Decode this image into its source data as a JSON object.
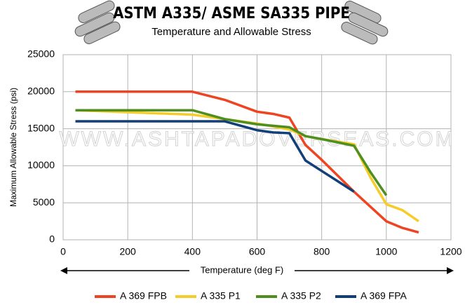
{
  "chart_data": {
    "type": "line",
    "title": "ASTM A335/ ASME SA335 PIPE",
    "subtitle": "Temperature and Allowable Stress",
    "watermark": "WWW.ASHTAPADOVERSEAS.COM",
    "x_label": "Temperature (deg F)",
    "y_label": "Maximum Allowable Stress (psi)",
    "xlim": [
      0,
      1200
    ],
    "xticks": [
      0,
      200,
      400,
      600,
      800,
      1000,
      1200
    ],
    "ylim": [
      0,
      25000
    ],
    "yticks": [
      0,
      5000,
      10000,
      15000,
      20000,
      25000
    ],
    "grid": true,
    "legend": "bottom",
    "series": [
      {
        "name": "A 369 FPB",
        "color": "#ee4422",
        "x": [
          38,
          400,
          500,
          600,
          650,
          700,
          750,
          800,
          900,
          1000,
          1050,
          1100
        ],
        "values": [
          20000,
          20000,
          18900,
          17300,
          17000,
          16500,
          12800,
          10800,
          6500,
          2500,
          1600,
          1000
        ]
      },
      {
        "name": "A 335 P1",
        "color": "#f5cc2a",
        "x": [
          38,
          400,
          500,
          600,
          650,
          700,
          750,
          800,
          900,
          950,
          1000,
          1050,
          1100
        ],
        "values": [
          17500,
          16900,
          16300,
          15700,
          15300,
          14900,
          14000,
          13600,
          12900,
          8500,
          4800,
          4000,
          2500
        ]
      },
      {
        "name": "A 335 P2",
        "color": "#4e8f1f",
        "x": [
          38,
          400,
          500,
          600,
          650,
          700,
          750,
          800,
          900,
          950,
          1000
        ],
        "values": [
          17500,
          17500,
          16300,
          15600,
          15400,
          15200,
          14000,
          13600,
          12700,
          9200,
          6000
        ]
      },
      {
        "name": "A 369 FPA",
        "color": "#123f7a",
        "x": [
          38,
          400,
          500,
          600,
          650,
          700,
          750,
          800,
          900
        ],
        "values": [
          16000,
          16000,
          16000,
          14800,
          14500,
          14400,
          10700,
          9300,
          6500
        ]
      }
    ]
  }
}
